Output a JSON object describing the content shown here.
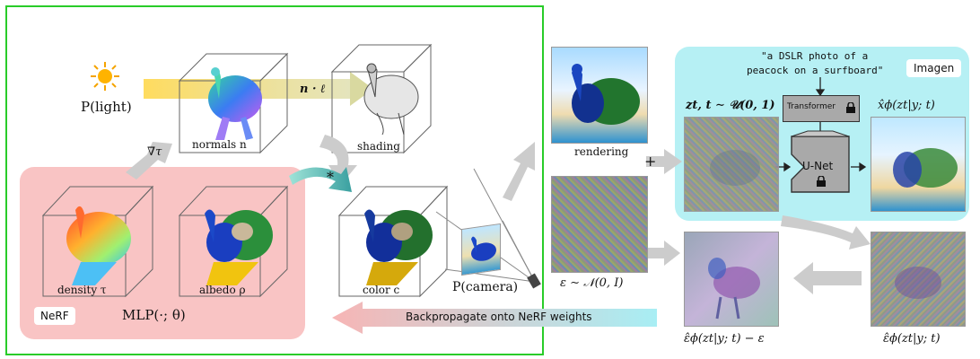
{
  "colors": {
    "nerf_frame": "#29cc29",
    "nerf_box": "#f9c4c4",
    "imagen_box": "#b6f0f4",
    "arrow_gray": "#c9c9c9",
    "backprop_start": "#f7b5b5",
    "backprop_end": "#a8eef4"
  },
  "labels": {
    "light": "P(light)",
    "grad": "∇τ",
    "normals": "normals n",
    "n_dot_l": "n · ℓ",
    "shading": "shading",
    "star": "*",
    "density": "density τ",
    "albedo": "albedo ρ",
    "color": "color c",
    "camera": "P(camera)",
    "nerf_tag": "NeRF",
    "mlp": "MLP(·; θ)",
    "rendering": "rendering",
    "plus": "+",
    "noise": "ε ∼ 𝒩(0, I)",
    "zt": "zt, t ∼ 𝒰(0, 1)",
    "prompt_line1": "\"a DSLR photo of a",
    "prompt_line2": "peacock on a surfboard\"",
    "imagen_tag": "Imagen",
    "transformer": "Transformer",
    "unet": "U-Net",
    "xhat": "x̂ϕ(zt|y; t)",
    "eps_diff": "ε̂ϕ(zt|y; t) − ε",
    "eps_hat": "ε̂ϕ(zt|y; t)",
    "backprop": "Backpropagate onto NeRF weights"
  },
  "icons": {
    "sun": "sun-icon",
    "lock": "lock-icon"
  }
}
